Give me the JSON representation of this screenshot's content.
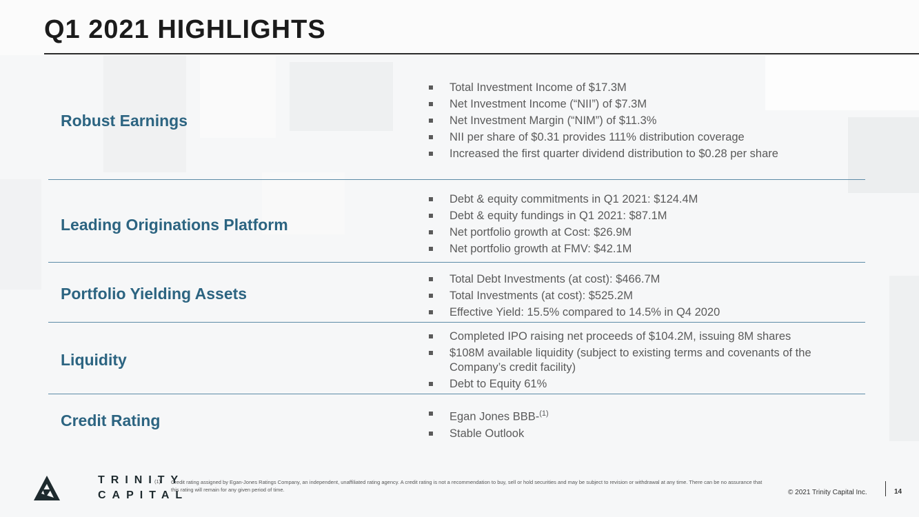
{
  "title": "Q1 2021 HIGHLIGHTS",
  "sections": [
    {
      "label": "Robust Earnings",
      "bullets": [
        "Total Investment Income of $17.3M",
        "Net Investment Income (“NII”) of $7.3M",
        "Net Investment Margin (“NIM”) of $11.3%",
        "NII per share of $0.31 provides 111% distribution coverage",
        "Increased the first quarter dividend distribution to $0.28 per share"
      ]
    },
    {
      "label": "Leading Originations Platform",
      "bullets": [
        "Debt & equity commitments in Q1 2021: $124.4M",
        "Debt & equity fundings in Q1 2021: $87.1M",
        "Net portfolio growth at Cost: $26.9M",
        "Net portfolio growth at FMV: $42.1M"
      ]
    },
    {
      "label": "Portfolio Yielding Assets",
      "bullets": [
        "Total Debt Investments (at cost): $466.7M",
        "Total Investments (at cost): $525.2M",
        "Effective Yield: 15.5% compared to 14.5% in Q4 2020"
      ]
    },
    {
      "label": "Liquidity",
      "bullets": [
        "Completed IPO raising net proceeds of $104.2M, issuing 8M shares",
        "$108M available liquidity (subject to existing terms and covenants of the Company’s credit facility)",
        "Debt to Equity 61%"
      ]
    },
    {
      "label": "Credit Rating",
      "bullets": [
        "Egan Jones BBB-",
        "Stable Outlook"
      ],
      "footnote_marker": "(1)"
    }
  ],
  "logo": {
    "line1": "TRINITY",
    "line2": "CAPITAL"
  },
  "footnote": {
    "number": "(1)",
    "text": "Credit rating assigned by Egan-Jones Ratings Company, an independent, unaffiliated rating agency. A credit rating is not a recommendation to buy, sell or hold securities and may be subject to revision or withdrawal at any time. There can be no assurance that this rating will remain for any given period of time."
  },
  "copyright": "© 2021 Trinity Capital Inc.",
  "page_number": "14",
  "colors": {
    "label": "#2c6481",
    "separator": "#5b8aa6",
    "bullet_text": "#5a5a5a"
  }
}
